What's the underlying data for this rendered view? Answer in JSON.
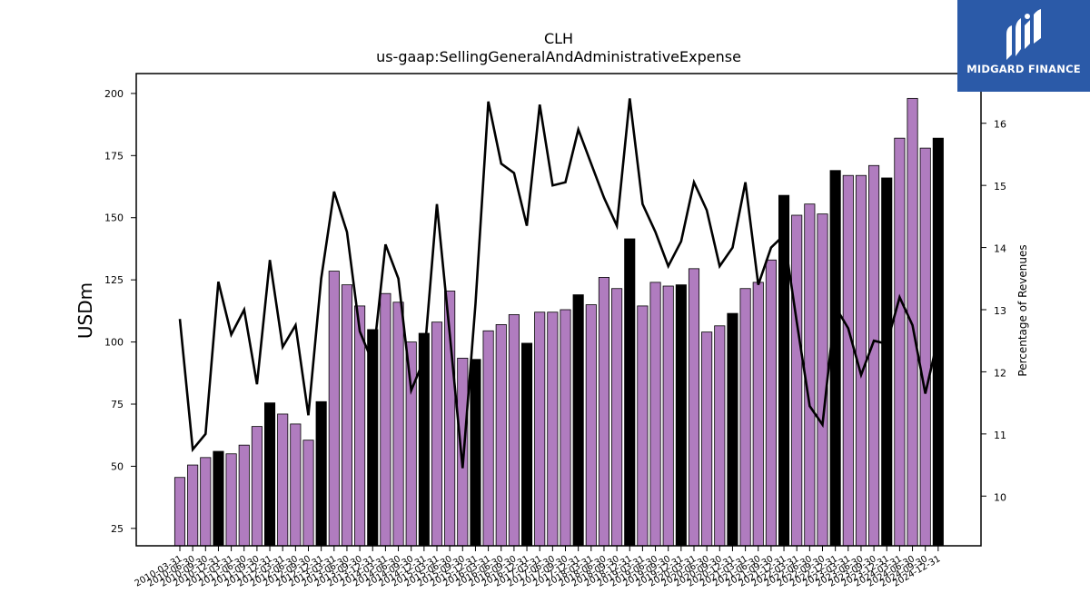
{
  "chart_data": {
    "type": "bar",
    "title": "CLH",
    "subtitle": "us-gaap:SellingGeneralAndAdministrativeExpense",
    "ylabel": "USDm",
    "y2label": "Percentage of Revenues",
    "ylim": [
      18,
      208
    ],
    "y2lim": [
      9.2,
      16.8
    ],
    "yticks": [
      25,
      50,
      75,
      100,
      125,
      150,
      175,
      200
    ],
    "y2ticks": [
      10,
      11,
      12,
      13,
      14,
      15,
      16
    ],
    "categories": [
      "2010-03-31",
      "2010-06-30",
      "2010-09-30",
      "2010-12-31",
      "2011-03-31",
      "2011-06-30",
      "2011-09-30",
      "2011-12-31",
      "2012-03-31",
      "2012-06-30",
      "2012-09-30",
      "2012-12-31",
      "2013-03-31",
      "2013-06-30",
      "2013-09-30",
      "2013-12-31",
      "2014-03-31",
      "2014-06-30",
      "2014-09-30",
      "2014-12-31",
      "2015-03-31",
      "2015-06-30",
      "2015-09-30",
      "2015-12-31",
      "2016-03-31",
      "2016-06-30",
      "2016-09-30",
      "2016-12-31",
      "2017-03-31",
      "2017-06-30",
      "2017-09-30",
      "2017-12-31",
      "2018-03-31",
      "2018-06-30",
      "2018-09-30",
      "2018-12-31",
      "2019-03-31",
      "2019-06-30",
      "2019-09-30",
      "2019-12-31",
      "2020-03-31",
      "2020-06-30",
      "2020-09-30",
      "2020-12-31",
      "2021-03-31",
      "2021-06-30",
      "2021-09-30",
      "2021-12-31",
      "2022-03-31",
      "2022-06-30",
      "2022-09-30",
      "2022-12-31",
      "2023-03-31",
      "2023-06-30",
      "2023-09-30",
      "2023-12-31",
      "2024-03-31",
      "2024-06-30",
      "2024-09-30",
      "2024-12-31"
    ],
    "series": [
      {
        "type": "bar",
        "values": [
          45.5,
          50.5,
          53.5,
          56,
          55,
          58.5,
          66,
          75.5,
          71,
          67,
          60.5,
          76,
          128.5,
          123,
          114.5,
          105,
          119.5,
          116,
          100,
          103.5,
          108,
          120.5,
          93.5,
          93,
          104.5,
          107,
          111,
          99.5,
          112,
          112,
          113,
          119,
          115,
          126,
          121.5,
          141.5,
          114.5,
          124,
          122.5,
          123,
          129.5,
          104,
          106.5,
          111.5,
          121.5,
          124,
          133,
          159,
          151,
          155.5,
          151.5,
          169,
          167,
          167,
          171,
          166,
          182,
          198,
          178,
          182
        ],
        "colors": [
          "purple",
          "purple",
          "purple",
          "black",
          "purple",
          "purple",
          "purple",
          "black",
          "purple",
          "purple",
          "purple",
          "black",
          "purple",
          "purple",
          "purple",
          "black",
          "purple",
          "purple",
          "purple",
          "black",
          "purple",
          "purple",
          "purple",
          "black",
          "purple",
          "purple",
          "purple",
          "black",
          "purple",
          "purple",
          "purple",
          "black",
          "purple",
          "purple",
          "purple",
          "black",
          "purple",
          "purple",
          "purple",
          "black",
          "purple",
          "purple",
          "purple",
          "black",
          "purple",
          "purple",
          "purple",
          "black",
          "purple",
          "purple",
          "purple",
          "black",
          "purple",
          "purple",
          "purple",
          "black",
          "purple",
          "purple",
          "purple",
          "black"
        ]
      },
      {
        "type": "line",
        "axis": "right",
        "values": [
          12.85,
          10.75,
          11.0,
          13.45,
          12.6,
          13.0,
          11.8,
          13.8,
          12.4,
          12.75,
          11.3,
          13.5,
          14.9,
          14.25,
          12.65,
          12.15,
          14.05,
          13.5,
          11.7,
          12.2,
          14.7,
          12.6,
          10.45,
          13.1,
          16.35,
          15.35,
          15.2,
          14.35,
          16.3,
          15.0,
          15.05,
          15.9,
          15.35,
          14.8,
          14.35,
          16.4,
          14.7,
          14.25,
          13.7,
          14.1,
          15.05,
          14.6,
          13.7,
          14.0,
          15.05,
          13.4,
          14.0,
          14.2,
          12.8,
          11.45,
          11.15,
          13.05,
          12.7,
          11.95,
          12.5,
          12.45,
          13.2,
          12.75,
          11.65,
          12.55
        ]
      }
    ],
    "colors": {
      "purple": "#b07cbf",
      "black": "#000000",
      "line": "#000000"
    },
    "grid": false,
    "legend": "none"
  },
  "logo": {
    "text": "MIDGARD FINANCE",
    "bg": "#2b5aa8"
  }
}
